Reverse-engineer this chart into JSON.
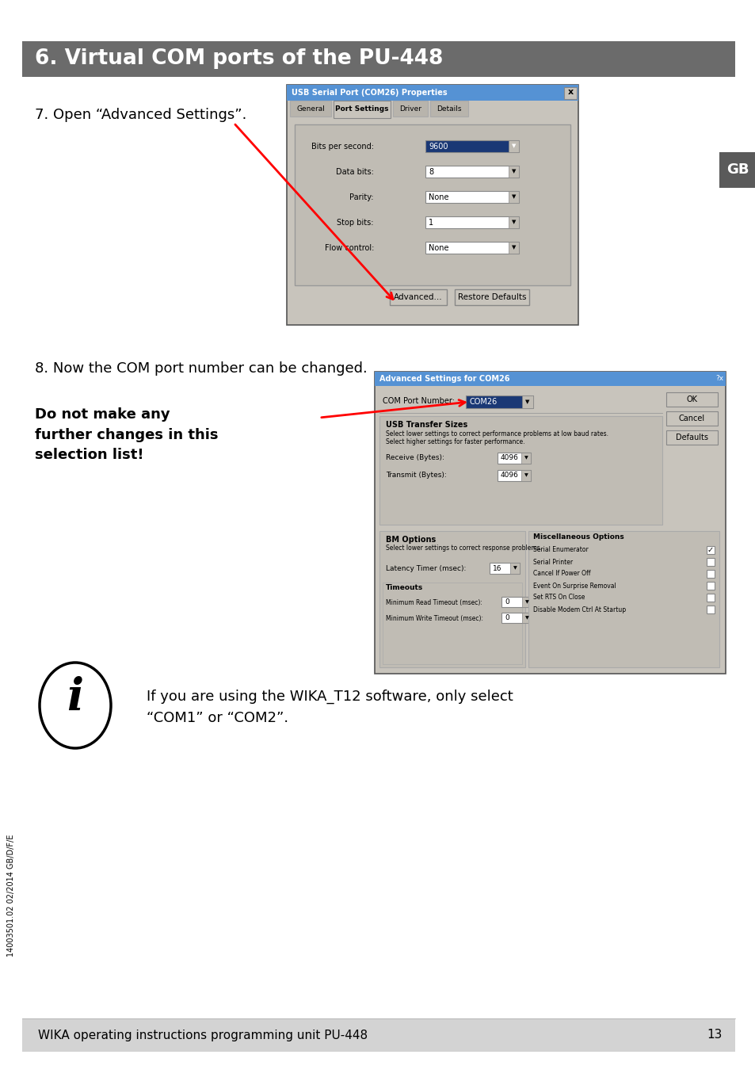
{
  "title": "6. Virtual COM ports of the PU-448",
  "title_bg": "#6b6b6b",
  "title_fg": "#ffffff",
  "page_bg": "#ffffff",
  "footer_bg": "#d3d3d3",
  "footer_text": "WIKA operating instructions programming unit PU-448",
  "footer_page": "13",
  "gb_label": "GB",
  "gb_bg": "#5a5a5a",
  "step7_text": "7. Open “Advanced Settings”.",
  "step8_text": "8. Now the COM port number can be changed.",
  "warning_text": "Do not make any\nfurther changes in this\nselection list!",
  "info_text": "If you are using the WIKA_T12 software, only select\n“COM1” or “COM2”.",
  "side_text": "14003501.02 02/2014 GB/D/F/E",
  "dlg1_title": "USB Serial Port (COM26) Properties",
  "dlg2_title": "Advanced Settings for COM26",
  "tabs": [
    "General",
    "Port Settings",
    "Driver",
    "Details"
  ],
  "fields": [
    [
      "Bits per second:",
      "9600",
      true
    ],
    [
      "Data bits:",
      "8",
      false
    ],
    [
      "Parity:",
      "None",
      false
    ],
    [
      "Stop bits:",
      "1",
      false
    ],
    [
      "Flow control:",
      "None",
      false
    ]
  ],
  "misc_items": [
    "Serial Enumerator",
    "Serial Printer",
    "Cancel If Power Off",
    "Event On Surprise Removal",
    "Set RTS On Close",
    "Disable Modem Ctrl At Startup"
  ],
  "misc_checked": [
    true,
    false,
    false,
    false,
    false,
    false
  ]
}
